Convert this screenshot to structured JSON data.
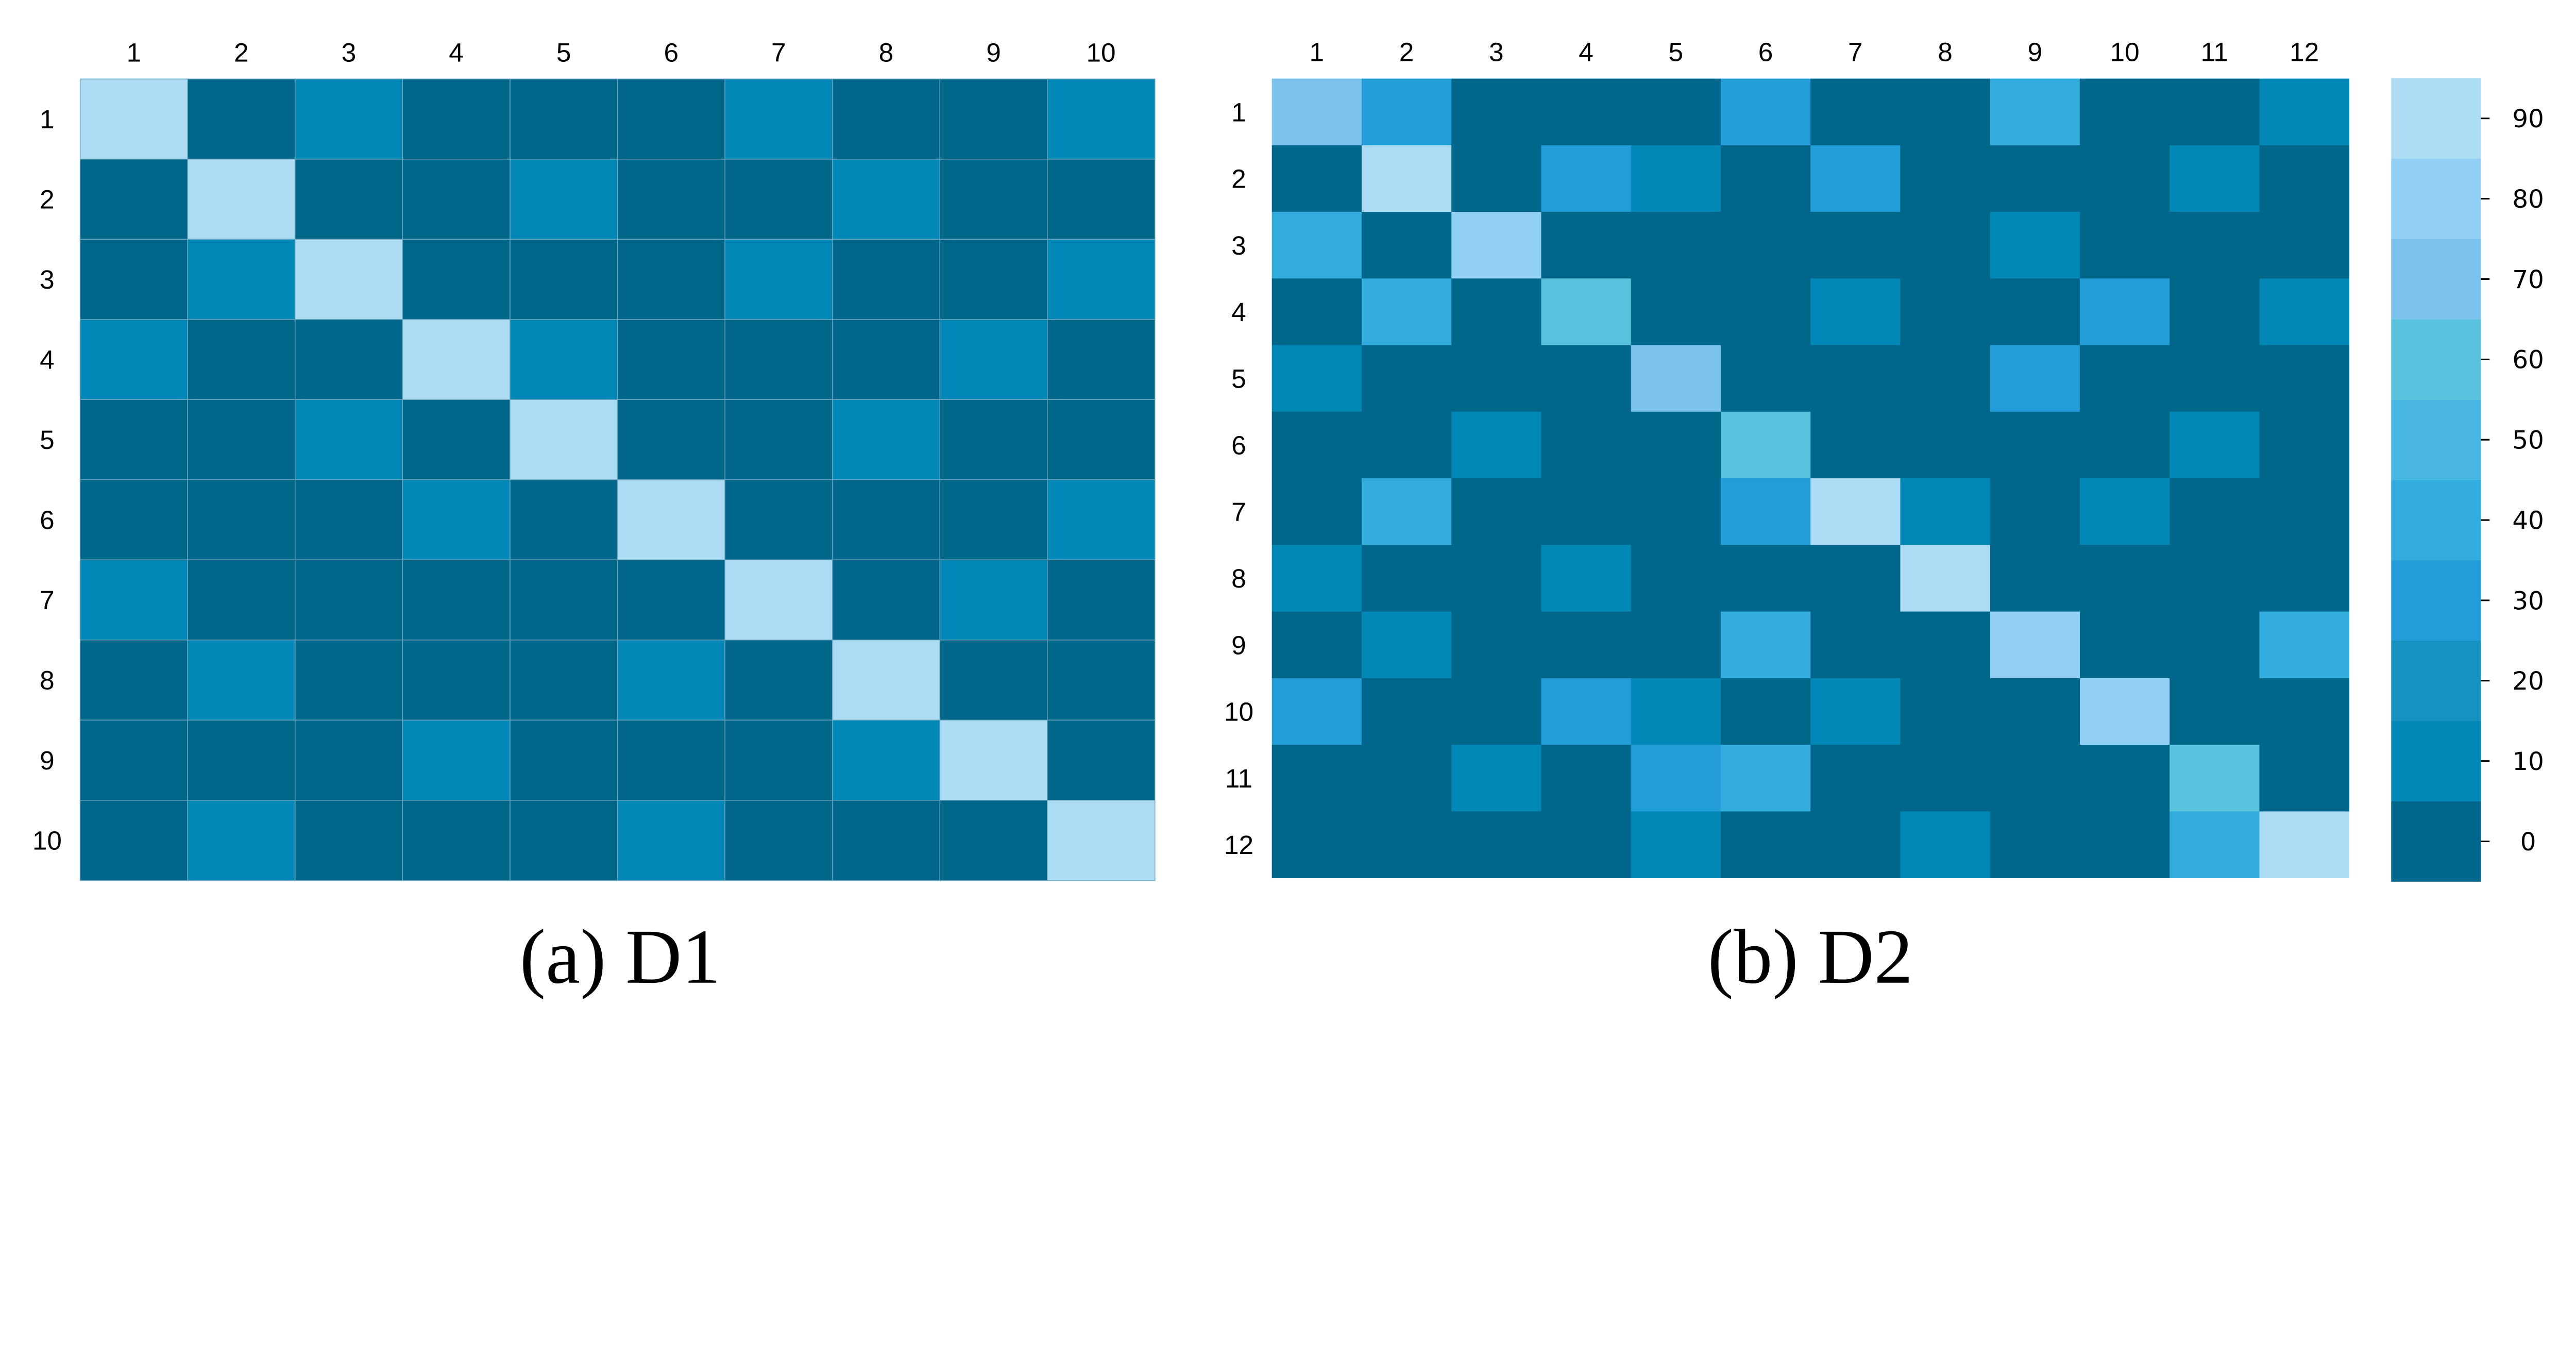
{
  "chart_data": [
    {
      "type": "heatmap",
      "title": "(a) D1",
      "x_categories": [
        "1",
        "2",
        "3",
        "4",
        "5",
        "6",
        "7",
        "8",
        "9",
        "10"
      ],
      "y_categories": [
        "1",
        "2",
        "3",
        "4",
        "5",
        "6",
        "7",
        "8",
        "9",
        "10"
      ],
      "values": [
        [
          90,
          0,
          10,
          0,
          0,
          0,
          10,
          0,
          0,
          10
        ],
        [
          0,
          90,
          0,
          0,
          10,
          0,
          0,
          10,
          0,
          0
        ],
        [
          0,
          10,
          90,
          0,
          0,
          0,
          10,
          0,
          0,
          10
        ],
        [
          10,
          0,
          0,
          90,
          10,
          0,
          0,
          0,
          10,
          0
        ],
        [
          0,
          0,
          10,
          0,
          90,
          0,
          0,
          10,
          0,
          0
        ],
        [
          0,
          0,
          0,
          10,
          0,
          90,
          0,
          0,
          0,
          10
        ],
        [
          10,
          0,
          0,
          0,
          0,
          0,
          90,
          0,
          10,
          0
        ],
        [
          0,
          10,
          0,
          0,
          0,
          10,
          0,
          90,
          0,
          0
        ],
        [
          0,
          0,
          0,
          10,
          0,
          0,
          0,
          10,
          90,
          0
        ],
        [
          0,
          10,
          0,
          0,
          0,
          10,
          0,
          0,
          0,
          90
        ]
      ]
    },
    {
      "type": "heatmap",
      "title": "(b) D2",
      "x_categories": [
        "1",
        "2",
        "3",
        "4",
        "5",
        "6",
        "7",
        "8",
        "9",
        "10",
        "11",
        "12"
      ],
      "y_categories": [
        "1",
        "2",
        "3",
        "4",
        "5",
        "6",
        "7",
        "8",
        "9",
        "10",
        "11",
        "12"
      ],
      "values": [
        [
          70,
          30,
          0,
          0,
          0,
          30,
          0,
          0,
          40,
          0,
          0,
          10
        ],
        [
          0,
          90,
          0,
          30,
          10,
          0,
          30,
          0,
          0,
          0,
          10,
          0
        ],
        [
          40,
          0,
          80,
          0,
          0,
          0,
          0,
          0,
          10,
          0,
          0,
          0
        ],
        [
          0,
          40,
          0,
          60,
          0,
          0,
          10,
          0,
          0,
          30,
          0,
          10
        ],
        [
          10,
          0,
          0,
          0,
          70,
          0,
          0,
          0,
          30,
          0,
          0,
          0
        ],
        [
          0,
          0,
          10,
          0,
          0,
          60,
          0,
          0,
          0,
          0,
          10,
          0
        ],
        [
          0,
          40,
          0,
          0,
          0,
          30,
          90,
          10,
          0,
          10,
          0,
          0
        ],
        [
          10,
          0,
          0,
          10,
          0,
          0,
          0,
          90,
          0,
          0,
          0,
          0
        ],
        [
          0,
          10,
          0,
          0,
          0,
          40,
          0,
          0,
          80,
          0,
          0,
          40
        ],
        [
          30,
          0,
          0,
          30,
          10,
          0,
          10,
          0,
          0,
          80,
          0,
          0
        ],
        [
          0,
          0,
          10,
          0,
          30,
          40,
          0,
          0,
          0,
          0,
          60,
          0
        ],
        [
          0,
          0,
          0,
          0,
          10,
          0,
          0,
          10,
          0,
          0,
          40,
          90
        ]
      ]
    }
  ],
  "colorbar": {
    "ticks": [
      "0",
      "10",
      "20",
      "30",
      "40",
      "50",
      "60",
      "70",
      "80",
      "90"
    ],
    "colors": [
      "#00668a",
      "#0288b6",
      "#1592c0",
      "#229dd8",
      "#31acdc",
      "#48b7e2",
      "#5bc2de",
      "#7bc3ee",
      "#91d0f4",
      "#acdcf4"
    ]
  }
}
